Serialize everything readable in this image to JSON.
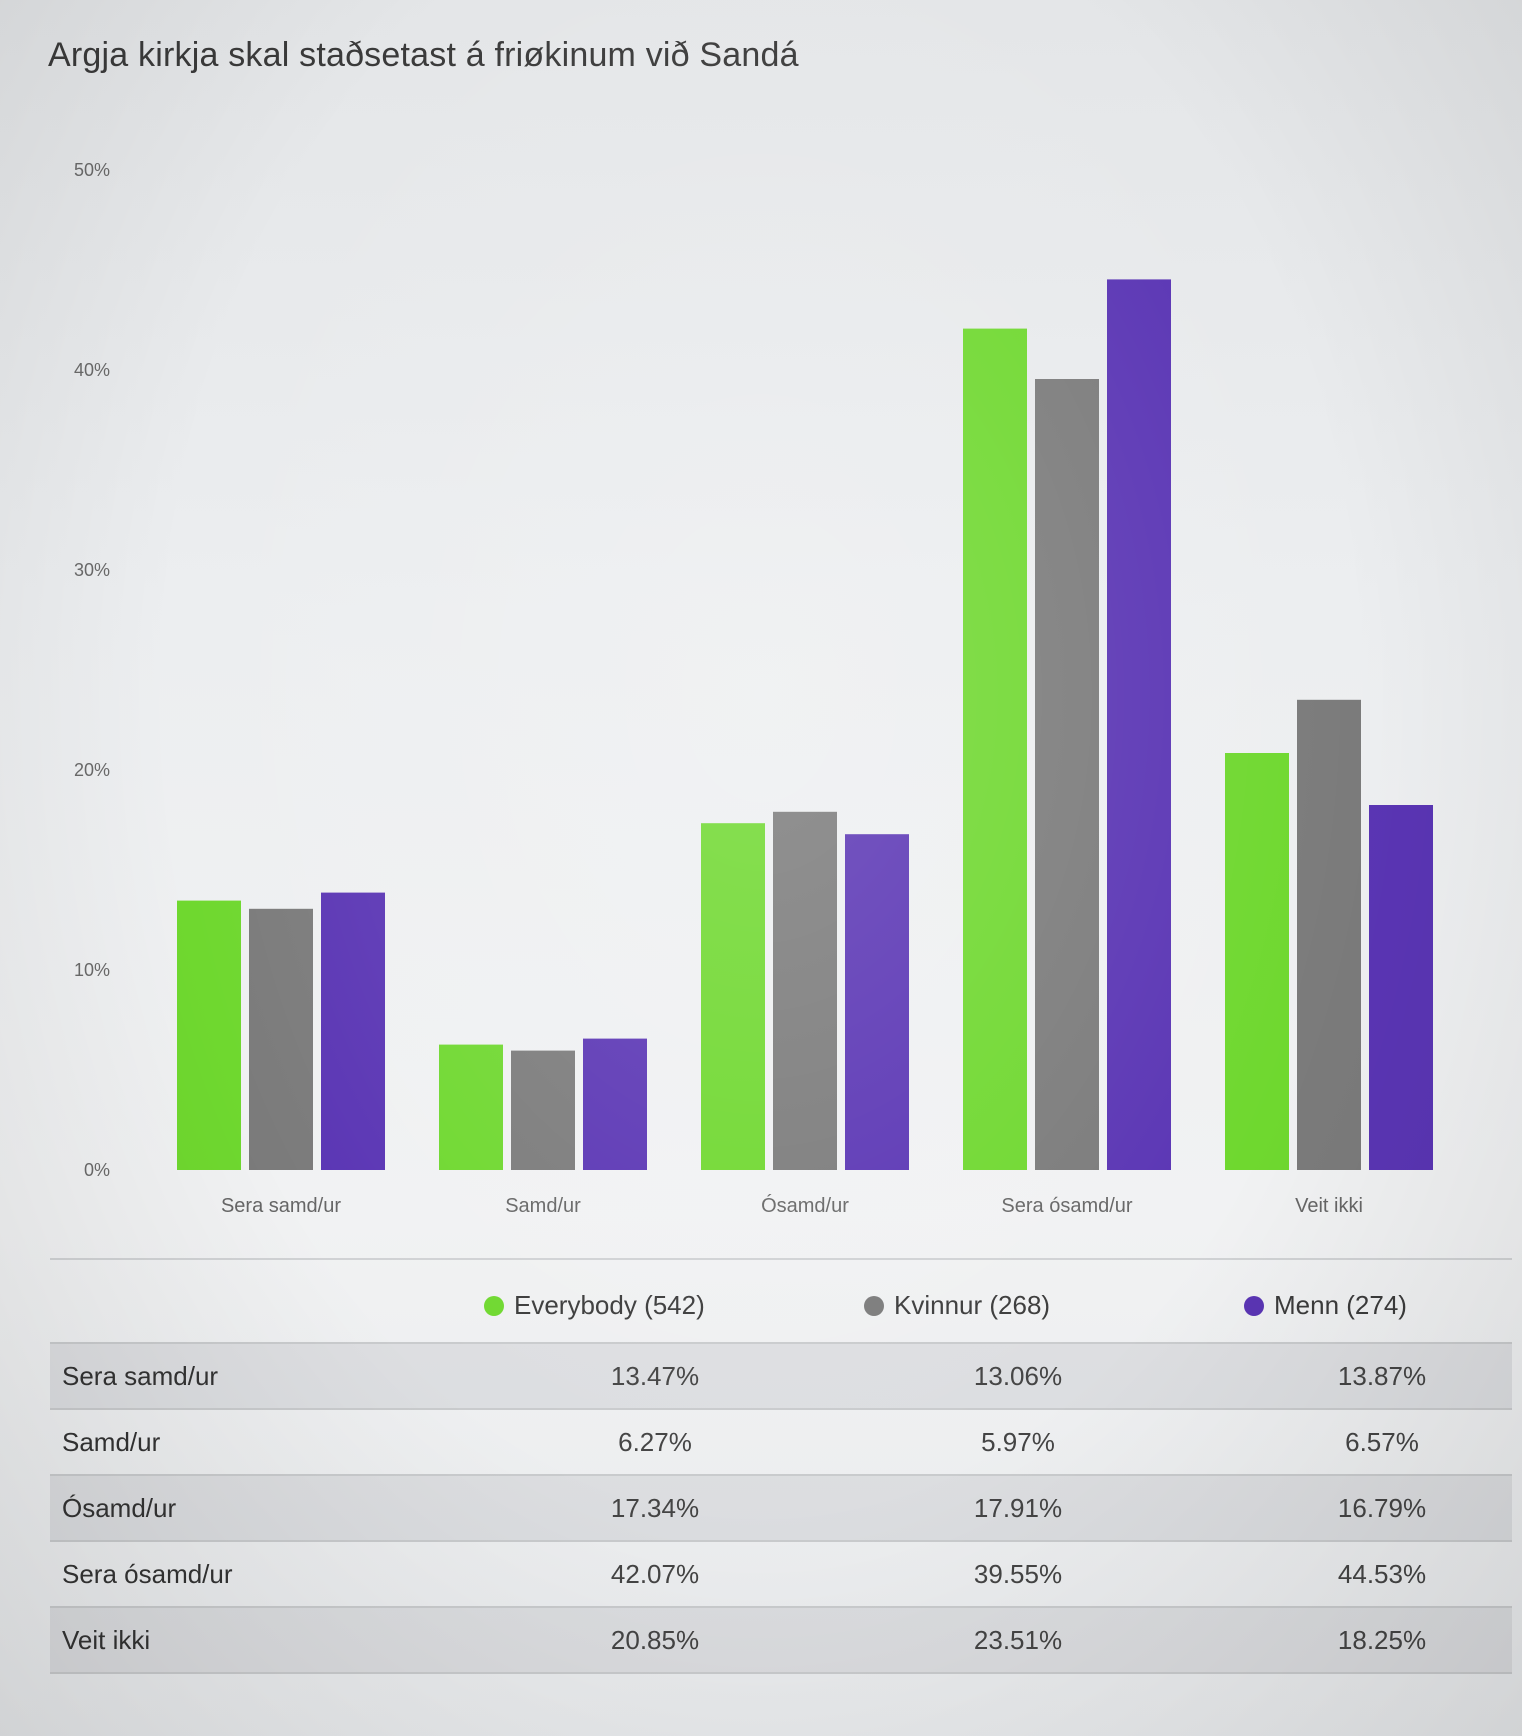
{
  "title": "Argja kirkja skal staðsetast á friøkinum við Sandá",
  "colors": {
    "everybody": "#6fd82f",
    "kvinnur": "#7b7b7b",
    "menn": "#5a35b4"
  },
  "chart_data": {
    "type": "bar",
    "title": "Argja kirkja skal staðsetast á friøkinum við Sandá",
    "categories": [
      "Sera samd/ur",
      "Samd/ur",
      "Ósamd/ur",
      "Sera ósamd/ur",
      "Veit ikki"
    ],
    "series": [
      {
        "name": "Everybody (542)",
        "values": [
          13.47,
          6.27,
          17.34,
          42.07,
          20.85
        ]
      },
      {
        "name": "Kvinnur (268)",
        "values": [
          13.06,
          5.97,
          17.91,
          39.55,
          23.51
        ]
      },
      {
        "name": "Menn (274)",
        "values": [
          13.87,
          6.57,
          16.79,
          44.53,
          18.25
        ]
      }
    ],
    "yticks": [
      "0%",
      "10%",
      "20%",
      "30%",
      "40%",
      "50%"
    ],
    "ylim": [
      0,
      50
    ],
    "xlabel": "",
    "ylabel": "",
    "grid": false,
    "legend": "below chart"
  },
  "legend": [
    {
      "label": "Everybody (542)"
    },
    {
      "label": "Kvinnur (268)"
    },
    {
      "label": "Menn (274)"
    }
  ],
  "table": {
    "rows": [
      {
        "label": "Sera samd/ur",
        "values": [
          "13.47%",
          "13.06%",
          "13.87%"
        ]
      },
      {
        "label": "Samd/ur",
        "values": [
          "6.27%",
          "5.97%",
          "6.57%"
        ]
      },
      {
        "label": "Ósamd/ur",
        "values": [
          "17.34%",
          "17.91%",
          "16.79%"
        ]
      },
      {
        "label": "Sera ósamd/ur",
        "values": [
          "42.07%",
          "39.55%",
          "44.53%"
        ]
      },
      {
        "label": "Veit ikki",
        "values": [
          "20.85%",
          "23.51%",
          "18.25%"
        ]
      }
    ]
  }
}
